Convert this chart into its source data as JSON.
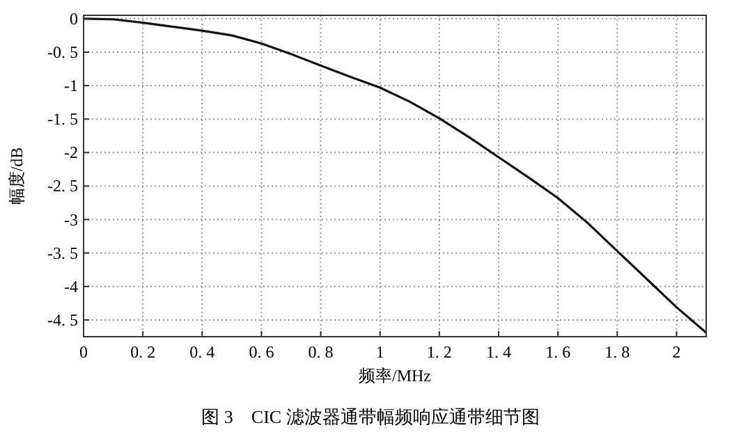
{
  "chart_data": {
    "type": "line",
    "title": "图 3　CIC 滤波器通带幅频响应通带细节图",
    "xlabel": "频率/MHz",
    "ylabel": "幅度/dB",
    "xlim": [
      0,
      2.1
    ],
    "ylim": [
      -4.75,
      0.05
    ],
    "xticks": [
      0,
      {
        "value": 0.2,
        "label": "0. 2"
      },
      {
        "value": 0.4,
        "label": "0. 4"
      },
      {
        "value": 0.6,
        "label": "0. 6"
      },
      {
        "value": 0.8,
        "label": "0. 8"
      },
      1,
      {
        "value": 1.2,
        "label": "1. 2"
      },
      {
        "value": 1.4,
        "label": "1. 4"
      },
      {
        "value": 1.6,
        "label": "1. 6"
      },
      {
        "value": 1.8,
        "label": "1. 8"
      },
      2
    ],
    "yticks": [
      0,
      {
        "value": -0.5,
        "label": "-0. 5"
      },
      -1,
      {
        "value": -1.5,
        "label": "-1. 5"
      },
      -2,
      {
        "value": -2.5,
        "label": "-2. 5"
      },
      -3,
      {
        "value": -3.5,
        "label": "-3. 5"
      },
      -4,
      {
        "value": -4.5,
        "label": "-4. 5"
      }
    ],
    "grid": true,
    "line_style": "solid",
    "marker": "none",
    "series": [
      {
        "color": "#111111",
        "x": [
          0,
          0.1,
          0.2,
          0.3,
          0.4,
          0.5,
          0.6,
          0.7,
          0.8,
          0.9,
          1.0,
          1.1,
          1.2,
          1.3,
          1.4,
          1.5,
          1.6,
          1.7,
          1.8,
          1.9,
          2.0,
          2.1
        ],
        "values": [
          0,
          -0.01,
          -0.06,
          -0.12,
          -0.18,
          -0.25,
          -0.37,
          -0.53,
          -0.7,
          -0.87,
          -1.03,
          -1.24,
          -1.49,
          -1.77,
          -2.07,
          -2.37,
          -2.68,
          -3.05,
          -3.47,
          -3.89,
          -4.31,
          -4.69
        ]
      }
    ]
  }
}
